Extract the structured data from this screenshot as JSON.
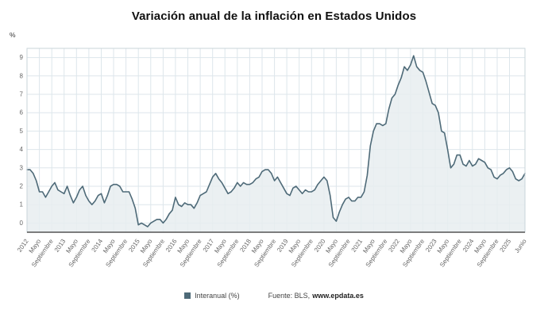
{
  "page": {
    "title": "Variación anual de la inflación en Estados Unidos"
  },
  "legend": {
    "series_label": "Interanual (%)",
    "source_prefix": "Fuente: BLS,",
    "source_site": "www.epdata.es"
  },
  "chart_data": {
    "type": "area",
    "title": "Variación anual de la inflación en Estados Unidos",
    "xlabel": "",
    "ylabel": "%",
    "ylim": [
      -0.5,
      9.5
    ],
    "y_ticks": [
      0,
      1,
      2,
      3,
      4,
      5,
      6,
      7,
      8,
      9
    ],
    "x_range": "2012-01 a 2025-06 (mensual)",
    "series": [
      {
        "name": "Interanual (%)",
        "values": [
          2.9,
          2.9,
          2.7,
          2.3,
          1.7,
          1.7,
          1.4,
          1.7,
          2.0,
          2.2,
          1.8,
          1.7,
          1.6,
          2.0,
          1.5,
          1.1,
          1.4,
          1.8,
          2.0,
          1.5,
          1.2,
          1.0,
          1.2,
          1.5,
          1.6,
          1.1,
          1.5,
          2.0,
          2.1,
          2.1,
          2.0,
          1.7,
          1.7,
          1.7,
          1.3,
          0.8,
          -0.1,
          0.0,
          -0.1,
          -0.2,
          0.0,
          0.1,
          0.2,
          0.2,
          0.0,
          0.2,
          0.5,
          0.7,
          1.4,
          1.0,
          0.9,
          1.1,
          1.0,
          1.0,
          0.8,
          1.1,
          1.5,
          1.6,
          1.7,
          2.1,
          2.5,
          2.7,
          2.4,
          2.2,
          1.9,
          1.6,
          1.7,
          1.9,
          2.2,
          2.0,
          2.2,
          2.1,
          2.1,
          2.2,
          2.4,
          2.5,
          2.8,
          2.9,
          2.9,
          2.7,
          2.3,
          2.5,
          2.2,
          1.9,
          1.6,
          1.5,
          1.9,
          2.0,
          1.8,
          1.6,
          1.8,
          1.7,
          1.7,
          1.8,
          2.1,
          2.3,
          2.5,
          2.3,
          1.5,
          0.3,
          0.1,
          0.6,
          1.0,
          1.3,
          1.4,
          1.2,
          1.2,
          1.4,
          1.4,
          1.7,
          2.6,
          4.2,
          5.0,
          5.4,
          5.4,
          5.3,
          5.4,
          6.2,
          6.8,
          7.0,
          7.5,
          7.9,
          8.5,
          8.3,
          8.6,
          9.1,
          8.5,
          8.3,
          8.2,
          7.7,
          7.1,
          6.5,
          6.4,
          6.0,
          5.0,
          4.9,
          4.0,
          3.0,
          3.2,
          3.7,
          3.7,
          3.2,
          3.1,
          3.4,
          3.1,
          3.2,
          3.5,
          3.4,
          3.3,
          3.0,
          2.9,
          2.5,
          2.4,
          2.6,
          2.7,
          2.9,
          3.0,
          2.8,
          2.4,
          2.3,
          2.4,
          2.7
        ]
      }
    ],
    "x_ticks": [
      {
        "i": 0,
        "label": "2012"
      },
      {
        "i": 4,
        "label": "Mayo"
      },
      {
        "i": 8,
        "label": "Septiembre"
      },
      {
        "i": 12,
        "label": "2013"
      },
      {
        "i": 16,
        "label": "Mayo"
      },
      {
        "i": 20,
        "label": "Septiembre"
      },
      {
        "i": 24,
        "label": "2014"
      },
      {
        "i": 28,
        "label": "Mayo"
      },
      {
        "i": 32,
        "label": "Septiembre"
      },
      {
        "i": 36,
        "label": "2015"
      },
      {
        "i": 40,
        "label": "Mayo"
      },
      {
        "i": 44,
        "label": "Septiembre"
      },
      {
        "i": 48,
        "label": "2016"
      },
      {
        "i": 52,
        "label": "Mayo"
      },
      {
        "i": 56,
        "label": "Septiembre"
      },
      {
        "i": 60,
        "label": "2017"
      },
      {
        "i": 64,
        "label": "Mayo"
      },
      {
        "i": 68,
        "label": "Septiembre"
      },
      {
        "i": 72,
        "label": "2018"
      },
      {
        "i": 76,
        "label": "Mayo"
      },
      {
        "i": 80,
        "label": "Septiembre"
      },
      {
        "i": 84,
        "label": "2019"
      },
      {
        "i": 88,
        "label": "Mayo"
      },
      {
        "i": 92,
        "label": "Septiembre"
      },
      {
        "i": 96,
        "label": "2020"
      },
      {
        "i": 100,
        "label": "Mayo"
      },
      {
        "i": 104,
        "label": "Septiembre"
      },
      {
        "i": 108,
        "label": "2021"
      },
      {
        "i": 112,
        "label": "Mayo"
      },
      {
        "i": 116,
        "label": "Septiembre"
      },
      {
        "i": 120,
        "label": "2022"
      },
      {
        "i": 124,
        "label": "Mayo"
      },
      {
        "i": 128,
        "label": "Septiembre"
      },
      {
        "i": 132,
        "label": "2023"
      },
      {
        "i": 136,
        "label": "Mayo"
      },
      {
        "i": 140,
        "label": "Septiembre"
      },
      {
        "i": 144,
        "label": "2024"
      },
      {
        "i": 148,
        "label": "Mayo"
      },
      {
        "i": 152,
        "label": "Septiembre"
      },
      {
        "i": 156,
        "label": "2025"
      },
      {
        "i": 161,
        "label": "Junio"
      }
    ],
    "legend_position": "bottom",
    "grid": true,
    "colors": {
      "line": "#4e6a78",
      "fill": "#e8edf0",
      "grid": "#dde6eb",
      "border": "#c9d4da",
      "axis": "#333333",
      "tick_text": "#666666"
    }
  }
}
